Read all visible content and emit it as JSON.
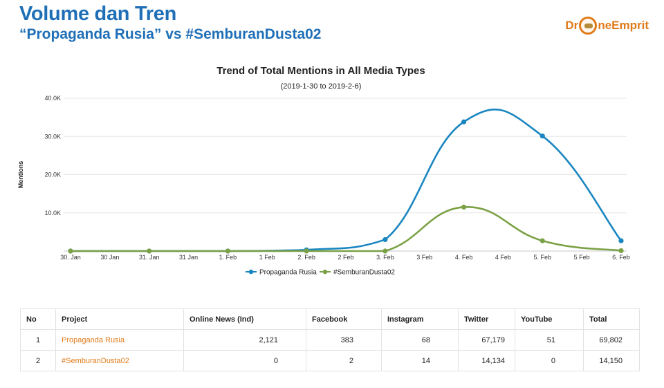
{
  "header": {
    "title": "Volume dan Tren",
    "subtitle": "“Propaganda Rusia” vs #SemburanDusta02",
    "logo_text_left": "Dr",
    "logo_text_right": "neEmprit"
  },
  "chart_data": {
    "type": "line",
    "title": "Trend of Total Mentions in All Media Types",
    "subtitle": "(2019-1-30 to 2019-2-6)",
    "ylabel": "Mentions",
    "ylim": [
      0,
      40000
    ],
    "yticks": [
      "10.0K",
      "20.0K",
      "30.0K",
      "40.0K"
    ],
    "ytick_values": [
      10000,
      20000,
      30000,
      40000
    ],
    "x": [
      "30. Jan",
      "31. Jan",
      "1. Feb",
      "2. Feb",
      "3. Feb",
      "4. Feb",
      "5. Feb",
      "6. Feb"
    ],
    "minor_x": [
      "30 Jan",
      "31 Jan",
      "1 Feb",
      "2 Feb",
      "3 Feb",
      "4 Feb",
      "5 Feb"
    ],
    "grid": true,
    "legend": "bottom-center",
    "series": [
      {
        "name": "Propaganda Rusia",
        "color": "#1a86c0",
        "values": [
          0,
          0,
          0,
          300,
          3000,
          33800,
          30100,
          2700
        ]
      },
      {
        "name": "#SemburanDusta02",
        "color": "#7ba146",
        "values": [
          0,
          0,
          0,
          0,
          0,
          11500,
          2700,
          100
        ]
      }
    ]
  },
  "table": {
    "headers": [
      "No",
      "Project",
      "Online News (Ind)",
      "Facebook",
      "Instagram",
      "Twitter",
      "YouTube",
      "Total"
    ],
    "rows": [
      [
        "1",
        "Propaganda Rusia",
        "2,121",
        "383",
        "68",
        "67,179",
        "51",
        "69,802"
      ],
      [
        "2",
        "#SemburanDusta02",
        "0",
        "2",
        "14",
        "14,134",
        "0",
        "14,150"
      ]
    ]
  }
}
